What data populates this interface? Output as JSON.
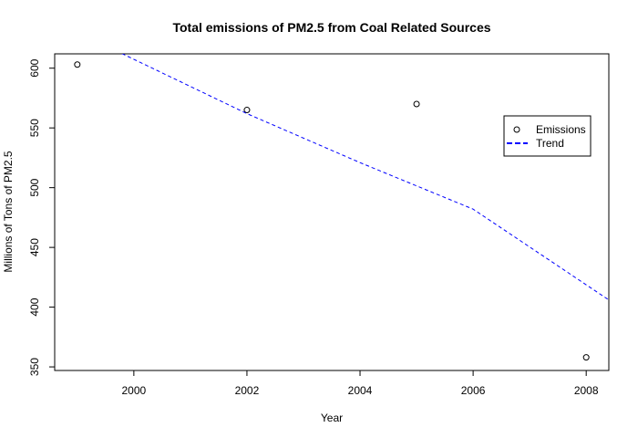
{
  "chart_data": {
    "type": "scatter",
    "title": "Total emissions of PM2.5 from Coal Related Sources",
    "xlabel": "Year",
    "ylabel": "Millions of Tons of PM2.5",
    "xlim": [
      1998.6,
      2008.4
    ],
    "ylim": [
      347,
      612
    ],
    "x_ticks": [
      2000,
      2002,
      2004,
      2006,
      2008
    ],
    "y_ticks": [
      350,
      400,
      450,
      500,
      550,
      600
    ],
    "grid": false,
    "legend_position": "right",
    "series": [
      {
        "name": "Emissions",
        "kind": "points",
        "marker": "open-circle",
        "color": "#000000",
        "x": [
          1999,
          2002,
          2005,
          2008
        ],
        "y": [
          603,
          565,
          570,
          358
        ]
      },
      {
        "name": "Trend",
        "kind": "line",
        "style": "dashed",
        "color": "#0000ff",
        "x": [
          1998.6,
          1999.8,
          2002,
          2004,
          2006,
          2008.4
        ],
        "y": [
          629,
          612,
          562,
          521,
          482,
          406
        ]
      }
    ]
  }
}
